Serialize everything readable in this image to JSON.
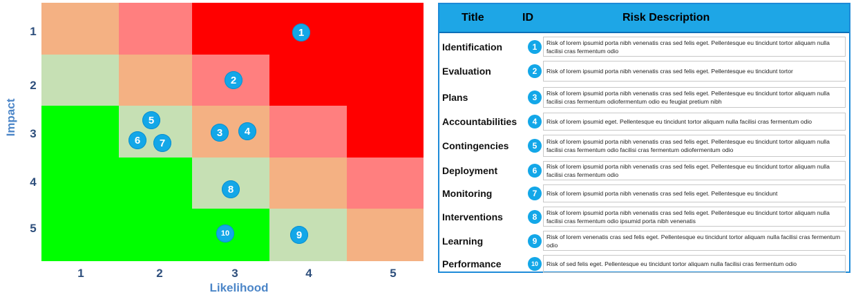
{
  "matrix": {
    "y_axis_title": "Impact",
    "x_axis_title": "Likelihood",
    "y_ticks": [
      "1",
      "2",
      "3",
      "4",
      "5"
    ],
    "x_ticks": [
      "1",
      "2",
      "3",
      "4",
      "5"
    ],
    "colors": {
      "red": "#ff0000",
      "pink": "#ff7f7f",
      "orange": "#f4b183",
      "lightgreen": "#c6e0b4",
      "green": "#00ff00",
      "marker": "#13a7e8"
    },
    "cell_levels": [
      [
        "orange",
        "pink",
        "red",
        "red",
        "red"
      ],
      [
        "lightgreen",
        "orange",
        "pink",
        "red",
        "red"
      ],
      [
        "green",
        "lightgreen",
        "orange",
        "pink",
        "red"
      ],
      [
        "green",
        "green",
        "lightgreen",
        "orange",
        "pink"
      ],
      [
        "green",
        "green",
        "green",
        "lightgreen",
        "orange"
      ]
    ],
    "markers": [
      {
        "id": "1",
        "impact": 1,
        "likelihood": 4
      },
      {
        "id": "2",
        "impact": 2,
        "likelihood": 3
      },
      {
        "id": "3",
        "impact": 3,
        "likelihood": 3
      },
      {
        "id": "4",
        "impact": 3,
        "likelihood": 3
      },
      {
        "id": "5",
        "impact": 3,
        "likelihood": 2
      },
      {
        "id": "6",
        "impact": 3,
        "likelihood": 2
      },
      {
        "id": "7",
        "impact": 3,
        "likelihood": 2
      },
      {
        "id": "8",
        "impact": 4,
        "likelihood": 3
      },
      {
        "id": "9",
        "impact": 5,
        "likelihood": 4
      },
      {
        "id": "10",
        "impact": 5,
        "likelihood": 3
      }
    ]
  },
  "table": {
    "headers": {
      "title": "Title",
      "id": "ID",
      "description": "Risk Description"
    },
    "rows": [
      {
        "title": "Identification",
        "id": "1",
        "description": "Risk of lorem ipsumid porta nibh venenatis cras sed felis eget. Pellentesque eu tincidunt tortor aliquam nulla facilisi cras fermentum odio"
      },
      {
        "title": "Evaluation",
        "id": "2",
        "description": "Risk of lorem ipsumid porta nibh venenatis cras sed felis eget. Pellentesque eu tincidunt tortor"
      },
      {
        "title": "Plans",
        "id": "3",
        "description": "Risk of lorem ipsumid porta nibh venenatis cras sed felis eget. Pellentesque eu tincidunt tortor aliquam nulla facilisi cras fermentum odiofermentum odio eu feugiat pretium nibh"
      },
      {
        "title": "Accountabilities",
        "id": "4",
        "description": "Risk of lorem ipsumid eget. Pellentesque eu tincidunt tortor aliquam nulla facilisi cras fermentum odio"
      },
      {
        "title": "Contingencies",
        "id": "5",
        "description": "Risk of lorem ipsumid porta nibh venenatis cras sed felis eget. Pellentesque eu tincidunt tortor aliquam nulla facilisi cras fermentum odio facilisi cras fermentum odiofermentum odio"
      },
      {
        "title": "Deployment",
        "id": "6",
        "description": "Risk of lorem ipsumid porta nibh venenatis cras sed felis eget. Pellentesque eu tincidunt tortor aliquam nulla facilisi cras fermentum odio"
      },
      {
        "title": "Monitoring",
        "id": "7",
        "description": "Risk of lorem ipsumid porta nibh venenatis cras sed felis eget. Pellentesque eu tincidunt"
      },
      {
        "title": "Interventions",
        "id": "8",
        "description": "Risk of lorem ipsumid porta nibh venenatis cras sed felis eget. Pellentesque eu tincidunt tortor aliquam nulla facilisi cras fermentum odio ipsumid porta nibh venenatis"
      },
      {
        "title": "Learning",
        "id": "9",
        "description": "Risk of lorem venenatis cras sed felis eget. Pellentesque eu tincidunt tortor aliquam nulla facilisi cras fermentum odio"
      },
      {
        "title": "Performance",
        "id": "10",
        "description": "Risk of sed felis eget. Pellentesque eu tincidunt tortor aliquam nulla facilisi cras fermentum odio"
      }
    ]
  }
}
